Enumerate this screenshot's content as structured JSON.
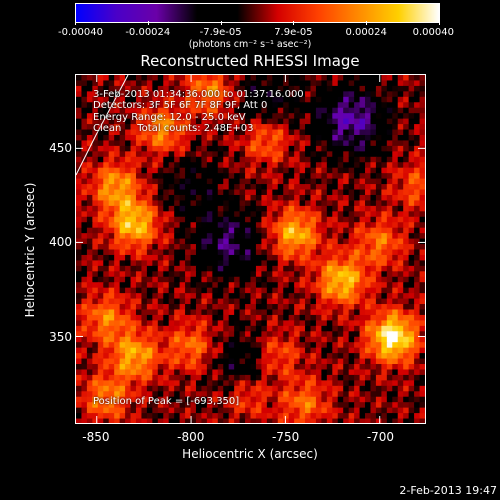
{
  "chart_data": {
    "type": "heatmap",
    "title": "Reconstructed RHESSI Image",
    "xlabel": "Heliocentric X (arcsec)",
    "ylabel": "Heliocentric Y (arcsec)",
    "xlim": [
      -861,
      -676
    ],
    "ylim": [
      304,
      489
    ],
    "x_ticks": [
      -850,
      -800,
      -750,
      -700
    ],
    "y_ticks": [
      350,
      400,
      450
    ],
    "colorbar": {
      "range": [
        -0.0004,
        0.0004
      ],
      "tick_labels": [
        "-0.00040",
        "-0.00024",
        "-7.9e-05",
        "7.9e-05",
        "0.00024",
        "0.00040"
      ],
      "unit": "(photons cm⁻² s⁻¹ asec⁻²)",
      "colormap": [
        "#0000ff",
        "#4a00c8",
        "#6a00a8",
        "#000000",
        "#000000",
        "#d40000",
        "#ff4000",
        "#ff8a00",
        "#ffd000",
        "#ffffff"
      ]
    },
    "peak": [
      -693,
      350
    ],
    "hotspots": [
      {
        "x": -693,
        "y": 350,
        "value": 0.0004
      },
      {
        "x": -745,
        "y": 405,
        "value": 0.00028
      },
      {
        "x": -720,
        "y": 380,
        "value": 0.0003
      },
      {
        "x": -830,
        "y": 410,
        "value": 0.0003
      },
      {
        "x": -840,
        "y": 430,
        "value": 0.00024
      },
      {
        "x": -815,
        "y": 460,
        "value": 0.00022
      },
      {
        "x": -760,
        "y": 455,
        "value": 0.00018
      },
      {
        "x": -790,
        "y": 480,
        "value": 0.0002
      },
      {
        "x": -830,
        "y": 340,
        "value": 0.00026
      },
      {
        "x": -845,
        "y": 360,
        "value": 0.0002
      },
      {
        "x": -800,
        "y": 345,
        "value": 0.00018
      },
      {
        "x": -845,
        "y": 318,
        "value": 0.0002
      },
      {
        "x": -755,
        "y": 340,
        "value": 0.00018
      },
      {
        "x": -770,
        "y": 320,
        "value": 0.00016
      },
      {
        "x": -700,
        "y": 400,
        "value": 0.00018
      },
      {
        "x": -680,
        "y": 430,
        "value": 0.00014
      },
      {
        "x": -740,
        "y": 315,
        "value": 0.00018
      }
    ],
    "coldspots": [
      {
        "x": -715,
        "y": 465,
        "value": -0.00024
      },
      {
        "x": -780,
        "y": 400,
        "value": -0.00018
      },
      {
        "x": -770,
        "y": 335,
        "value": -0.00016
      },
      {
        "x": -760,
        "y": 475,
        "value": -0.00012
      },
      {
        "x": -800,
        "y": 430,
        "value": -0.0001
      }
    ]
  },
  "info": {
    "time": "3-Feb-2013 01:34:36.000 to 01:37:16.000",
    "detectors": "Detectors: 3F 5F 6F 7F 8F 9F, Att 0",
    "energy": "Energy Range: 12.0 - 25.0 keV",
    "clean": "Clean     Total counts: 2.48E+03",
    "peak_text": "Position of Peak = [-693,350]"
  },
  "footer": "2-Feb-2013 19:47"
}
